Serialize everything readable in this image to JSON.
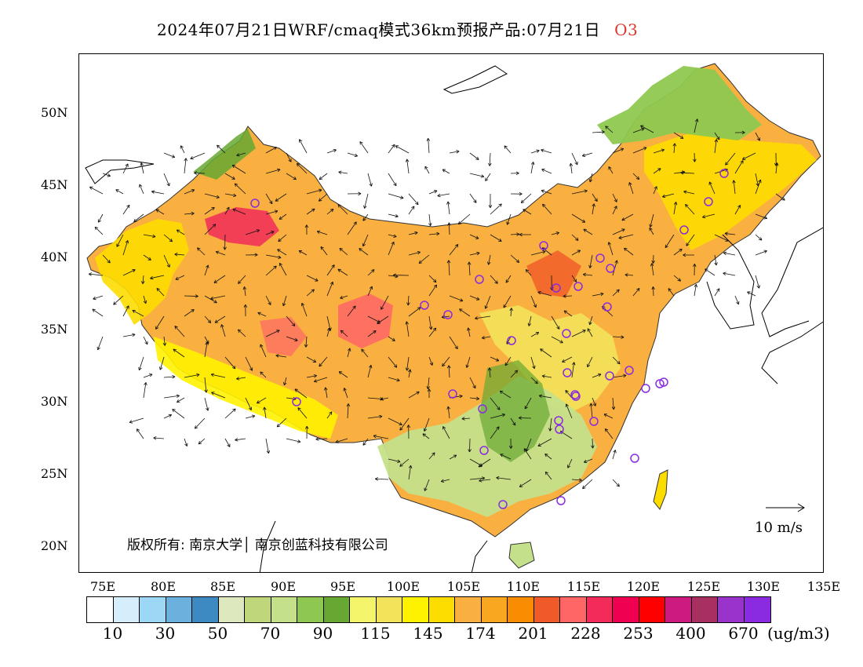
{
  "title": {
    "main": "2024年07月21日WRF/cmaq模式36km预报产品:07月21日",
    "species": "O3"
  },
  "axes": {
    "lat_labels": [
      "50N",
      "45N",
      "40N",
      "35N",
      "30N",
      "25N",
      "20N"
    ],
    "lon_labels": [
      "75E",
      "80E",
      "85E",
      "90E",
      "95E",
      "100E",
      "105E",
      "110E",
      "115E",
      "120E",
      "125E",
      "130E",
      "135E"
    ]
  },
  "copyright": "版权所有: 南京大学│ 南京创蓝科技有限公司",
  "wind_reference": "10 m/s",
  "colorbar": {
    "colors": [
      "#ffffff",
      "#d6eefb",
      "#9cd7f5",
      "#6cb0dd",
      "#3d8ac2",
      "#dde8bf",
      "#bfd67a",
      "#c5e08a",
      "#8ec850",
      "#66a832",
      "#f4f56a",
      "#f3e35a",
      "#fff200",
      "#fddd00",
      "#f9b040",
      "#f9a620",
      "#f98c00",
      "#f05a28",
      "#ff6666",
      "#f22b5a",
      "#ef0050",
      "#ff0000",
      "#cc1a80",
      "#a83060",
      "#9933cc",
      "#8a2be2"
    ],
    "labels": [
      "10",
      "30",
      "50",
      "70",
      "90",
      "115",
      "145",
      "174",
      "201",
      "228",
      "253",
      "400",
      "670"
    ],
    "unit": "(ug/m3)"
  }
}
